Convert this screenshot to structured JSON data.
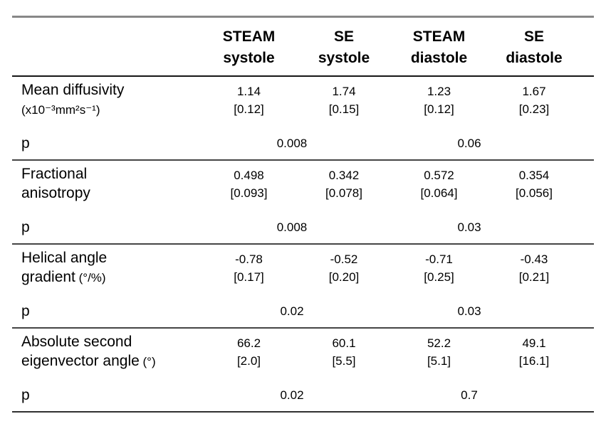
{
  "table": {
    "header": {
      "columns": [
        {
          "line1": "STEAM",
          "line2": "systole"
        },
        {
          "line1": "SE",
          "line2": "systole"
        },
        {
          "line1": "STEAM",
          "line2": "diastole"
        },
        {
          "line1": "SE",
          "line2": "diastole"
        }
      ]
    },
    "rows": [
      {
        "label_line1": "Mean diffusivity",
        "label_line2": "",
        "label_unit": "(x10⁻³mm²s⁻¹)",
        "cells": [
          {
            "mean": "1.14",
            "sd": "[0.12]"
          },
          {
            "mean": "1.74",
            "sd": "[0.15]"
          },
          {
            "mean": "1.23",
            "sd": "[0.12]"
          },
          {
            "mean": "1.67",
            "sd": "[0.23]"
          }
        ],
        "p_label": "p",
        "p_values": [
          "0.008",
          "0.06"
        ]
      },
      {
        "label_line1": "Fractional",
        "label_line2": "anisotropy",
        "label_unit": "",
        "cells": [
          {
            "mean": "0.498",
            "sd": "[0.093]"
          },
          {
            "mean": "0.342",
            "sd": "[0.078]"
          },
          {
            "mean": "0.572",
            "sd": "[0.064]"
          },
          {
            "mean": "0.354",
            "sd": "[0.056]"
          }
        ],
        "p_label": "p",
        "p_values": [
          "0.008",
          "0.03"
        ]
      },
      {
        "label_line1": "Helical angle",
        "label_line2": "gradient",
        "label_unit": " (°/%)",
        "cells": [
          {
            "mean": "-0.78",
            "sd": "[0.17]"
          },
          {
            "mean": "-0.52",
            "sd": "[0.20]"
          },
          {
            "mean": "-0.71",
            "sd": "[0.25]"
          },
          {
            "mean": "-0.43",
            "sd": "[0.21]"
          }
        ],
        "p_label": "p",
        "p_values": [
          "0.02",
          "0.03"
        ]
      },
      {
        "label_line1": "Absolute second",
        "label_line2": "eigenvector angle",
        "label_unit": " (°)",
        "cells": [
          {
            "mean": "66.2",
            "sd": "[2.0]"
          },
          {
            "mean": "60.1",
            "sd": "[5.5]"
          },
          {
            "mean": "52.2",
            "sd": "[5.1]"
          },
          {
            "mean": "49.1",
            "sd": "[16.1]"
          }
        ],
        "p_label": "p",
        "p_values": [
          "0.02",
          "0.7"
        ]
      }
    ]
  },
  "colors": {
    "background": "#ffffff",
    "text": "#000000",
    "top_border": "#878787",
    "header_border": "#161616",
    "group_border": "#454545",
    "bottom_border": "#303030"
  }
}
